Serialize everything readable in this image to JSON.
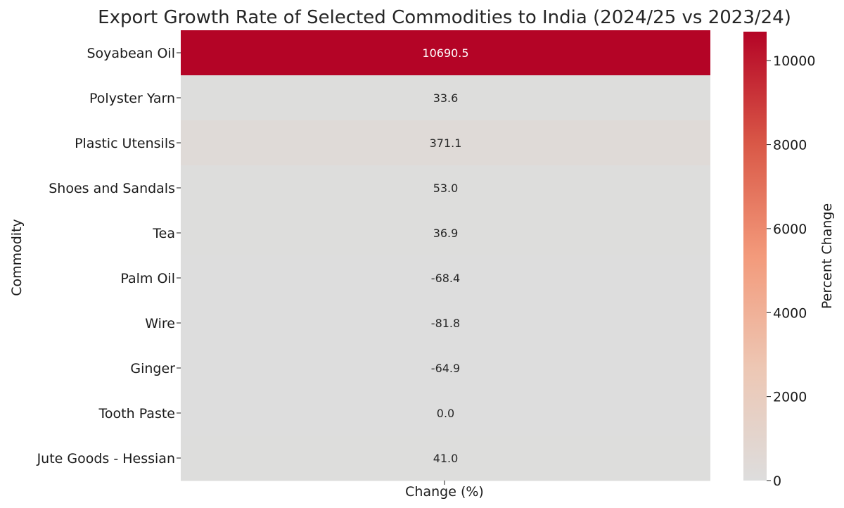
{
  "chart_data": {
    "type": "heatmap",
    "title": "Export Growth Rate of Selected Commodities to India (2024/25 vs 2023/24)",
    "xlabel": "Change (%)",
    "ylabel": "Commodity",
    "colorbar_label": "Percent Change",
    "colormap": "coolwarm",
    "vmin": 0,
    "vmax": 10690.5,
    "colorbar_ticks": [
      "0",
      "2000",
      "4000",
      "6000",
      "8000",
      "10000"
    ],
    "colorbar_tick_values": [
      0,
      2000,
      4000,
      6000,
      8000,
      10000
    ],
    "rows": [
      {
        "commodity": "Soyabean Oil",
        "value": 10690.5,
        "label": "10690.5"
      },
      {
        "commodity": "Polyster Yarn",
        "value": 33.6,
        "label": "33.6"
      },
      {
        "commodity": "Plastic Utensils",
        "value": 371.1,
        "label": "371.1"
      },
      {
        "commodity": "Shoes and Sandals",
        "value": 53.0,
        "label": "53.0"
      },
      {
        "commodity": "Tea",
        "value": 36.9,
        "label": "36.9"
      },
      {
        "commodity": "Palm Oil",
        "value": -68.4,
        "label": "-68.4"
      },
      {
        "commodity": "Wire",
        "value": -81.8,
        "label": "-81.8"
      },
      {
        "commodity": "Ginger",
        "value": -64.9,
        "label": "-64.9"
      },
      {
        "commodity": "Tooth Paste",
        "value": 0.0,
        "label": "0.0"
      },
      {
        "commodity": "Jute Goods - Hessian",
        "value": 41.0,
        "label": "41.0"
      }
    ],
    "colors": {
      "low": "#dddddd",
      "mid_low": "#edc7b4",
      "mid": "#f39a7b",
      "mid_high": "#d95847",
      "high": "#b40426"
    }
  }
}
